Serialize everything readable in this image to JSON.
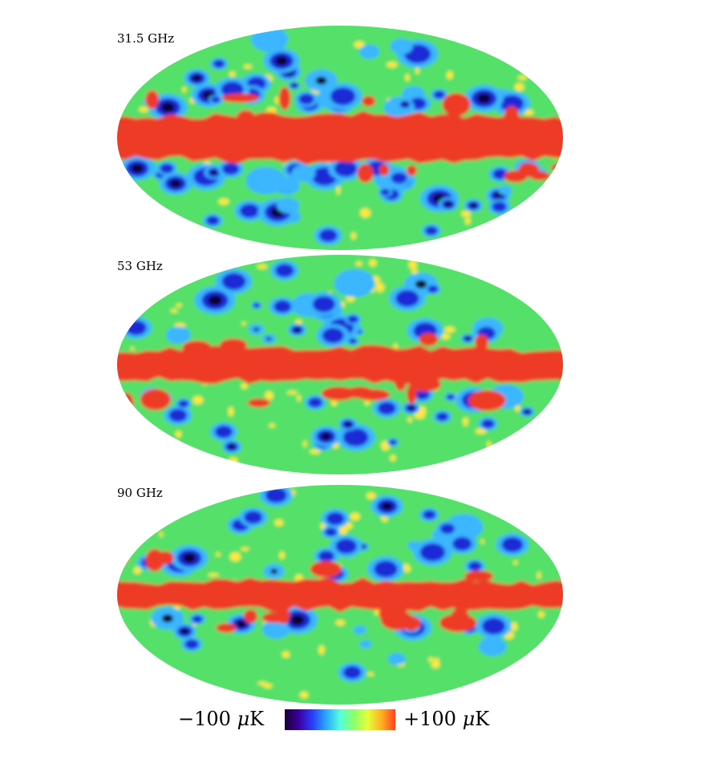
{
  "maps": [
    {
      "label": "31.5 GHz",
      "band": 1.0
    },
    {
      "label": "53 GHz",
      "band": 0.72
    },
    {
      "label": "90 GHz",
      "band": 0.6
    }
  ],
  "colorbar": {
    "min_label": "−100",
    "max_label": "+100",
    "unit_mu": "μ",
    "unit_k": "K",
    "colors": [
      "#1a0030",
      "#3a00a0",
      "#2a3cff",
      "#2aa8ff",
      "#55ffd8",
      "#8cff6a",
      "#e4ff3a",
      "#ffb020",
      "#ff4020"
    ]
  },
  "palette": {
    "galactic": "#ee3a25",
    "background_field": "#55e06a",
    "warm": "#ffe83a",
    "cold_1": "#3ab6ff",
    "cold_2": "#1f2bd6",
    "cold_3": "#07002e"
  }
}
